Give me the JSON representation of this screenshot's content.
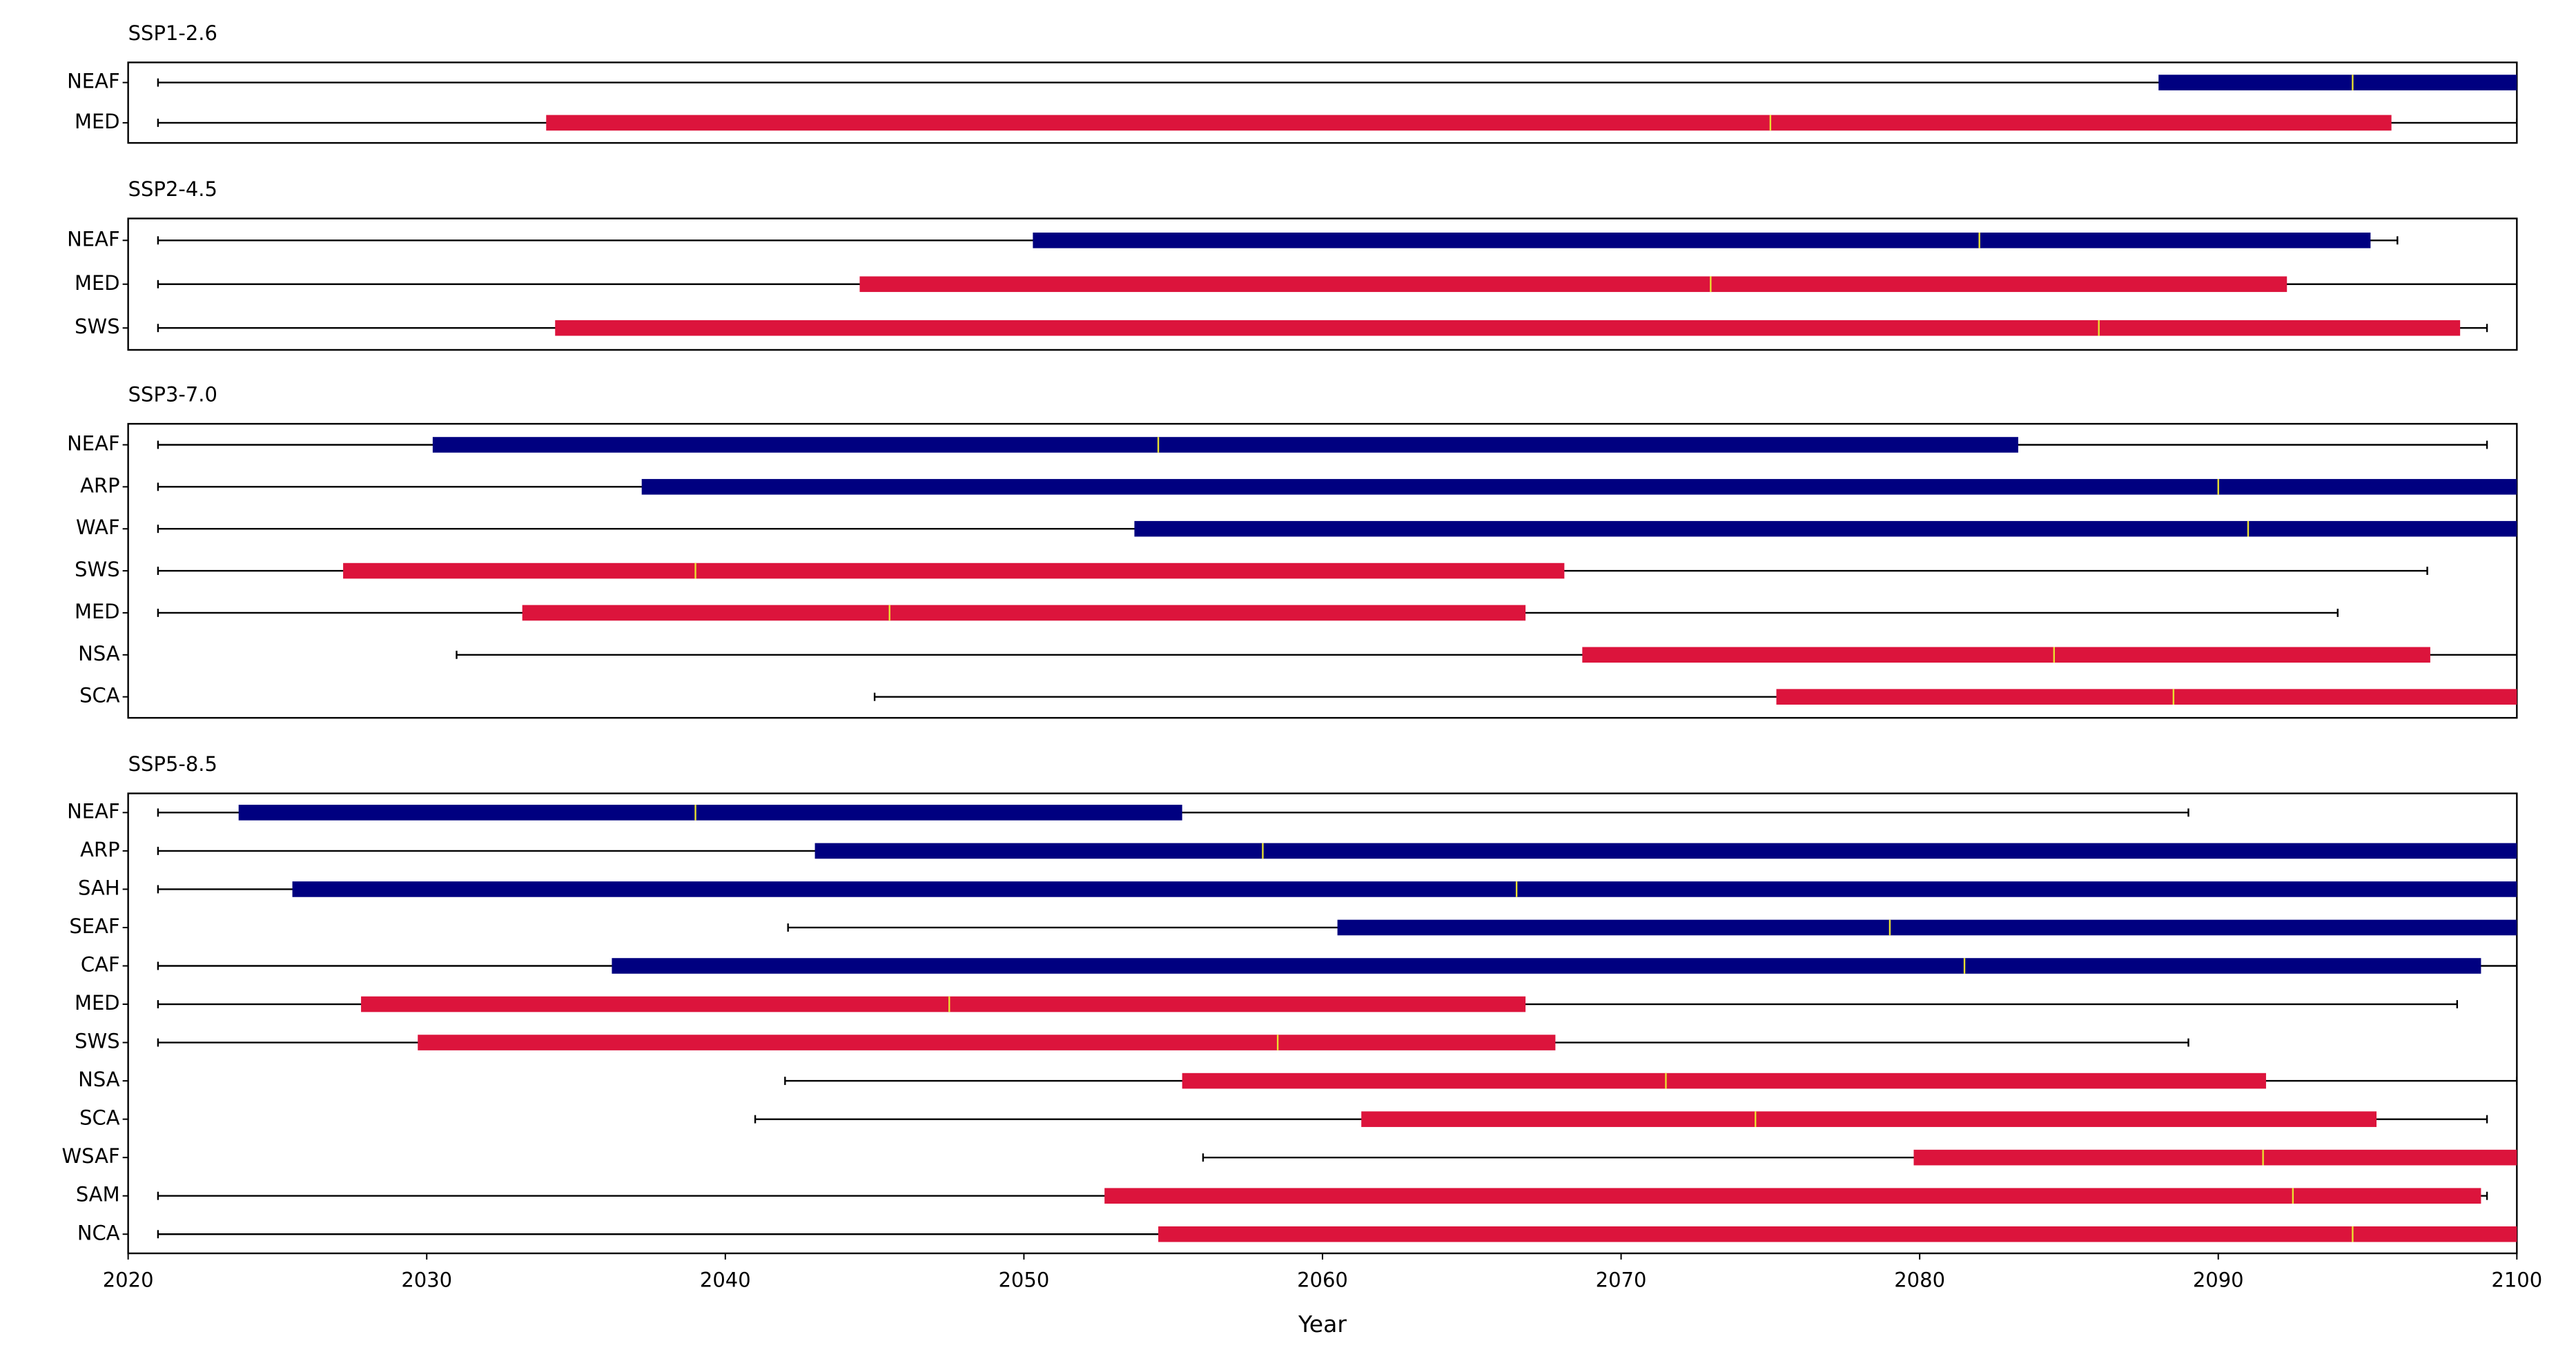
{
  "chart_data": [
    {
      "type": "box",
      "title": "SSP1-2.6",
      "xlim": [
        2020,
        2100
      ],
      "categories": [
        "NEAF",
        "MED"
      ],
      "colors": [
        "#000080",
        "#dc143c"
      ],
      "median_color": "#e8e030",
      "min": [
        2021,
        2021
      ],
      "q1": [
        2088.0,
        2034.0
      ],
      "median": [
        2094.5,
        2075.0
      ],
      "q3": [
        2100,
        2095.8
      ],
      "max": [
        2100,
        2100
      ]
    },
    {
      "type": "box",
      "title": "SSP2-4.5",
      "xlim": [
        2020,
        2100
      ],
      "categories": [
        "NEAF",
        "MED",
        "SWS"
      ],
      "colors": [
        "#000080",
        "#dc143c",
        "#dc143c"
      ],
      "median_color": "#e8e030",
      "min": [
        2021,
        2021,
        2021
      ],
      "q1": [
        2050.3,
        2044.5,
        2034.3
      ],
      "median": [
        2082.0,
        2073.0,
        2086.0
      ],
      "q3": [
        2095.1,
        2092.3,
        2098.1
      ],
      "max": [
        2096.0,
        2100,
        2099.0
      ]
    },
    {
      "type": "box",
      "title": "SSP3-7.0",
      "xlim": [
        2020,
        2100
      ],
      "categories": [
        "NEAF",
        "ARP",
        "WAF",
        "SWS",
        "MED",
        "NSA",
        "SCA"
      ],
      "colors": [
        "#000080",
        "#000080",
        "#000080",
        "#dc143c",
        "#dc143c",
        "#dc143c",
        "#dc143c"
      ],
      "median_color": "#e8e030",
      "min": [
        2021,
        2021,
        2021,
        2021,
        2021,
        2031.0,
        2045.0
      ],
      "q1": [
        2030.2,
        2037.2,
        2053.7,
        2027.2,
        2033.2,
        2068.7,
        2075.2
      ],
      "median": [
        2054.5,
        2090.0,
        2091.0,
        2039.0,
        2045.5,
        2084.5,
        2088.5
      ],
      "q3": [
        2083.3,
        2100,
        2100,
        2068.1,
        2066.8,
        2097.1,
        2100
      ],
      "max": [
        2099.0,
        2100,
        2100,
        2097.0,
        2094.0,
        2100,
        2100
      ]
    },
    {
      "type": "box",
      "title": "SSP5-8.5",
      "xlim": [
        2020,
        2100
      ],
      "xticks": [
        2020,
        2030,
        2040,
        2050,
        2060,
        2070,
        2080,
        2090,
        2100
      ],
      "xlabel": "Year",
      "categories": [
        "NEAF",
        "ARP",
        "SAH",
        "SEAF",
        "CAF",
        "MED",
        "SWS",
        "NSA",
        "SCA",
        "WSAF",
        "SAM",
        "NCA"
      ],
      "colors": [
        "#000080",
        "#000080",
        "#000080",
        "#000080",
        "#000080",
        "#dc143c",
        "#dc143c",
        "#dc143c",
        "#dc143c",
        "#dc143c",
        "#dc143c",
        "#dc143c"
      ],
      "median_color": "#e8e030",
      "min": [
        2021,
        2021,
        2021,
        2042.1,
        2021,
        2021,
        2021,
        2042.0,
        2041.0,
        2056.0,
        2021,
        2021
      ],
      "q1": [
        2023.7,
        2043.0,
        2025.5,
        2060.5,
        2036.2,
        2027.8,
        2029.7,
        2055.3,
        2061.3,
        2079.8,
        2052.7,
        2054.5
      ],
      "median": [
        2039.0,
        2058.0,
        2066.5,
        2079.0,
        2081.5,
        2047.5,
        2058.5,
        2071.5,
        2074.5,
        2091.5,
        2092.5,
        2094.5
      ],
      "q3": [
        2055.3,
        2100,
        2100,
        2100,
        2098.8,
        2066.8,
        2067.8,
        2091.6,
        2095.3,
        2100,
        2098.8,
        2100
      ],
      "max": [
        2089.0,
        2100,
        2100,
        2100,
        2100,
        2098.0,
        2089.0,
        2100,
        2099.0,
        2100,
        2099.0,
        2100
      ]
    }
  ]
}
